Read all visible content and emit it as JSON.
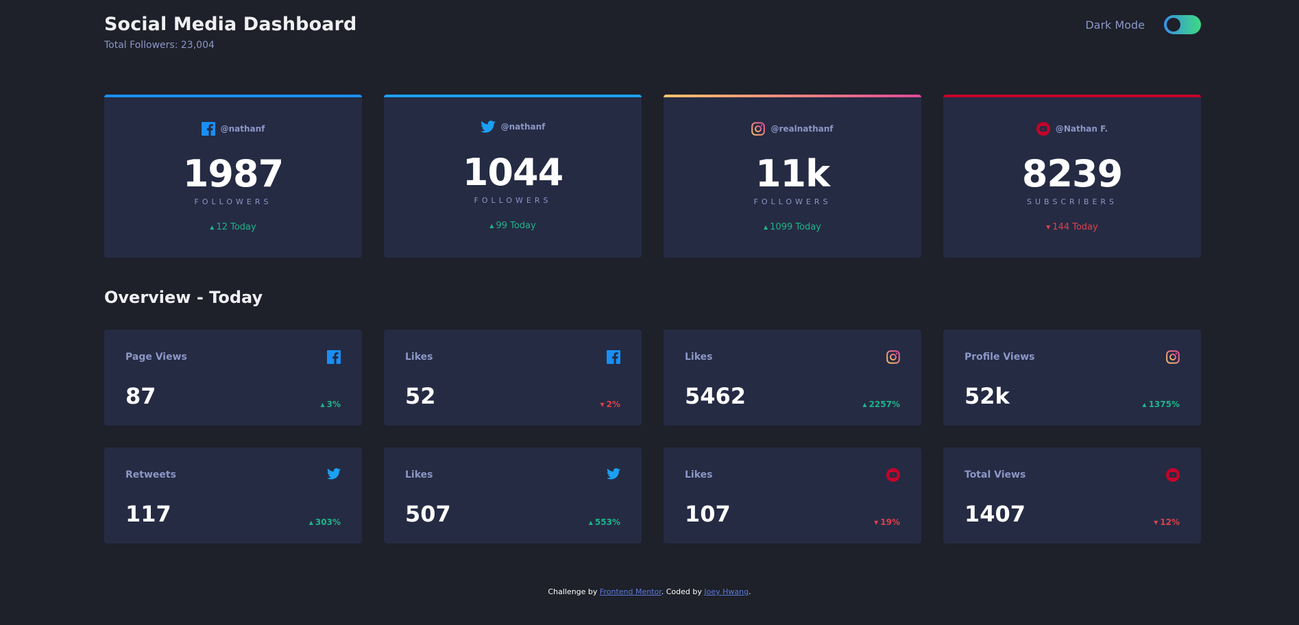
{
  "header": {
    "title": "Social Media Dashboard",
    "total_followers": "Total Followers: 23,004",
    "dark_mode_label": "Dark Mode",
    "dark_mode_on": true
  },
  "colors": {
    "background": "#1e202a",
    "card": "#252b43",
    "text_muted": "#8b97c6",
    "up": "#1db489",
    "down": "#dc414c",
    "facebook": "#198ff5",
    "twitter": "#1ca0f2",
    "instagram_start": "#fdc468",
    "instagram_end": "#df4996",
    "youtube": "#c4032a"
  },
  "followers": [
    {
      "platform_icon": "facebook-icon",
      "handle": "@nathanf",
      "count": "1987",
      "label": "FOLLOWERS",
      "change": "12 Today",
      "trend": "up"
    },
    {
      "platform_icon": "twitter-icon",
      "handle": "@nathanf",
      "count": "1044",
      "label": "FOLLOWERS",
      "change": "99 Today",
      "trend": "up"
    },
    {
      "platform_icon": "instagram-icon",
      "handle": "@realnathanf",
      "count": "11k",
      "label": "FOLLOWERS",
      "change": "1099 Today",
      "trend": "up"
    },
    {
      "platform_icon": "youtube-icon",
      "handle": "@Nathan F.",
      "count": "8239",
      "label": "SUBSCRIBERS",
      "change": "144 Today",
      "trend": "down"
    }
  ],
  "overview": {
    "title": "Overview - Today",
    "cards": [
      {
        "label": "Page Views",
        "platform_icon": "facebook-icon",
        "value": "87",
        "change": "3%",
        "trend": "up"
      },
      {
        "label": "Likes",
        "platform_icon": "facebook-icon",
        "value": "52",
        "change": "2%",
        "trend": "down"
      },
      {
        "label": "Likes",
        "platform_icon": "instagram-icon",
        "value": "5462",
        "change": "2257%",
        "trend": "up"
      },
      {
        "label": "Profile Views",
        "platform_icon": "instagram-icon",
        "value": "52k",
        "change": "1375%",
        "trend": "up"
      },
      {
        "label": "Retweets",
        "platform_icon": "twitter-icon",
        "value": "117",
        "change": "303%",
        "trend": "up"
      },
      {
        "label": "Likes",
        "platform_icon": "twitter-icon",
        "value": "507",
        "change": "553%",
        "trend": "up"
      },
      {
        "label": "Likes",
        "platform_icon": "youtube-icon",
        "value": "107",
        "change": "19%",
        "trend": "down"
      },
      {
        "label": "Total Views",
        "platform_icon": "youtube-icon",
        "value": "1407",
        "change": "12%",
        "trend": "down"
      }
    ]
  },
  "footer": {
    "prefix": "Challenge by ",
    "challenge_link": "Frontend Mentor",
    "middle": ". Coded by ",
    "author_link": "Joey Hwang",
    "suffix": "."
  }
}
